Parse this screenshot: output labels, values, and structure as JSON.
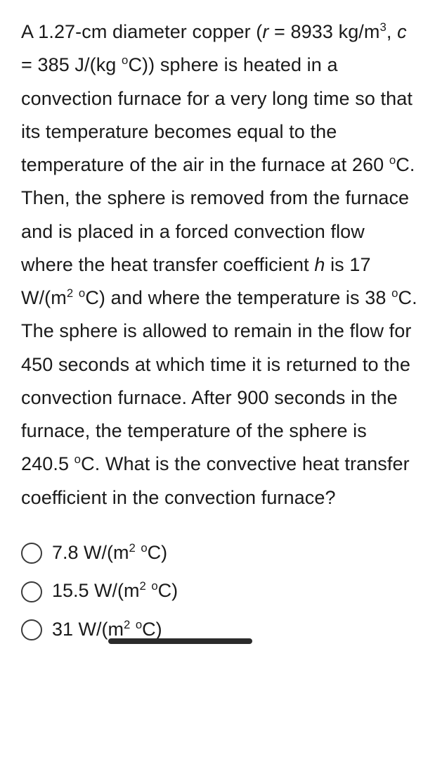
{
  "question": {
    "parts": [
      {
        "t": "A 1.27-cm diameter copper ("
      },
      {
        "t": "r",
        "ital": true
      },
      {
        "t": " = 8933 kg/m"
      },
      {
        "t": "3",
        "sup": true
      },
      {
        "t": ", "
      },
      {
        "t": "c",
        "ital": true
      },
      {
        "t": " = 385 J/(kg "
      },
      {
        "t": "o",
        "sup": true
      },
      {
        "t": "C)) sphere is heated in a convection furnace for a very long time so that its temperature becomes equal to the temperature of the air in the furnace at 260 "
      },
      {
        "t": "o",
        "sup": true
      },
      {
        "t": "C. Then, the sphere is removed from the furnace and is placed in a forced convection flow where the heat transfer coefficient "
      },
      {
        "t": "h",
        "ital": true
      },
      {
        "t": " is 17 W/(m"
      },
      {
        "t": "2",
        "sup": true
      },
      {
        "t": " "
      },
      {
        "t": "o",
        "sup": true
      },
      {
        "t": "C) and where the temperature is 38 "
      },
      {
        "t": "o",
        "sup": true
      },
      {
        "t": "C. The sphere is allowed to remain in the flow for 450 seconds at which time it is returned to the convection furnace. After 900 seconds in the furnace, the temperature of the sphere is 240.5 "
      },
      {
        "t": "o",
        "sup": true
      },
      {
        "t": "C. What is the convective heat transfer coefficient in the convection furnace?"
      }
    ]
  },
  "options": [
    {
      "name": "option-a",
      "parts": [
        {
          "t": "7.8 W/(m"
        },
        {
          "t": "2",
          "sup": true
        },
        {
          "t": " "
        },
        {
          "t": "o",
          "sup": true
        },
        {
          "t": "C)"
        }
      ],
      "underline": false
    },
    {
      "name": "option-b",
      "parts": [
        {
          "t": "15.5 W/(m"
        },
        {
          "t": "2",
          "sup": true
        },
        {
          "t": " "
        },
        {
          "t": "o",
          "sup": true
        },
        {
          "t": "C)"
        }
      ],
      "underline": false
    },
    {
      "name": "option-c",
      "parts": [
        {
          "t": "31 W/("
        },
        {
          "t": "m",
          "ul": true
        },
        {
          "t": "2",
          "sup": true,
          "ul": true
        },
        {
          "t": " ",
          "ul": true
        },
        {
          "t": "o",
          "sup": true,
          "ul": true
        },
        {
          "t": "C)",
          "ul": true
        }
      ],
      "underline": true
    }
  ],
  "style": {
    "text_color": "#1a1a1a",
    "background": "#ffffff",
    "radio_border": "#3b3b3b",
    "underline_color": "#2b2b2b",
    "font_size_pt": 20
  }
}
